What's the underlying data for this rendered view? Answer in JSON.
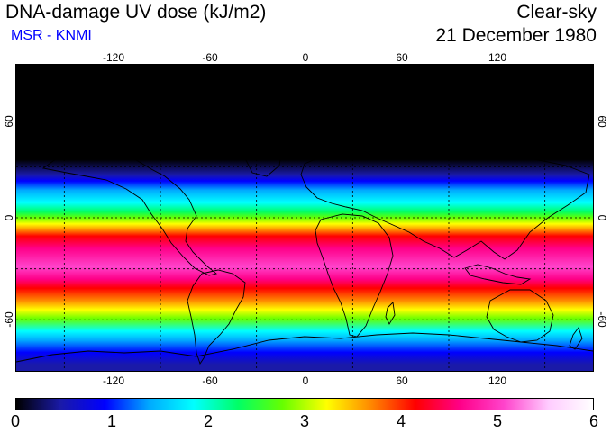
{
  "header": {
    "title": "DNA-damage UV dose (kJ/m2)",
    "source": "MSR - KNMI",
    "condition": "Clear-sky",
    "date": "21 December 1980"
  },
  "map": {
    "longitude_ticks": [
      "-120",
      "-60",
      "0",
      "60",
      "120"
    ],
    "latitude_ticks": [
      "60",
      "0",
      "-60"
    ],
    "projection_extent": {
      "lon": [
        -180,
        180
      ],
      "lat": [
        -90,
        90
      ]
    },
    "gridline_longitudes": [
      -150,
      -90,
      -30,
      30,
      90,
      150
    ],
    "gridline_latitudes": [
      -60,
      -30,
      0,
      30
    ]
  },
  "colorbar": {
    "labels": [
      "0",
      "1",
      "2",
      "3",
      "4",
      "5",
      "6"
    ],
    "min": 0,
    "max": 6,
    "colors": [
      "#000000",
      "#1a1aa8",
      "#0000ff",
      "#00aaff",
      "#00ffff",
      "#00ff66",
      "#66ff00",
      "#ffff00",
      "#ff8800",
      "#ff0000",
      "#ff0088",
      "#ff44cc",
      "#ffccff",
      "#ffffff"
    ]
  }
}
